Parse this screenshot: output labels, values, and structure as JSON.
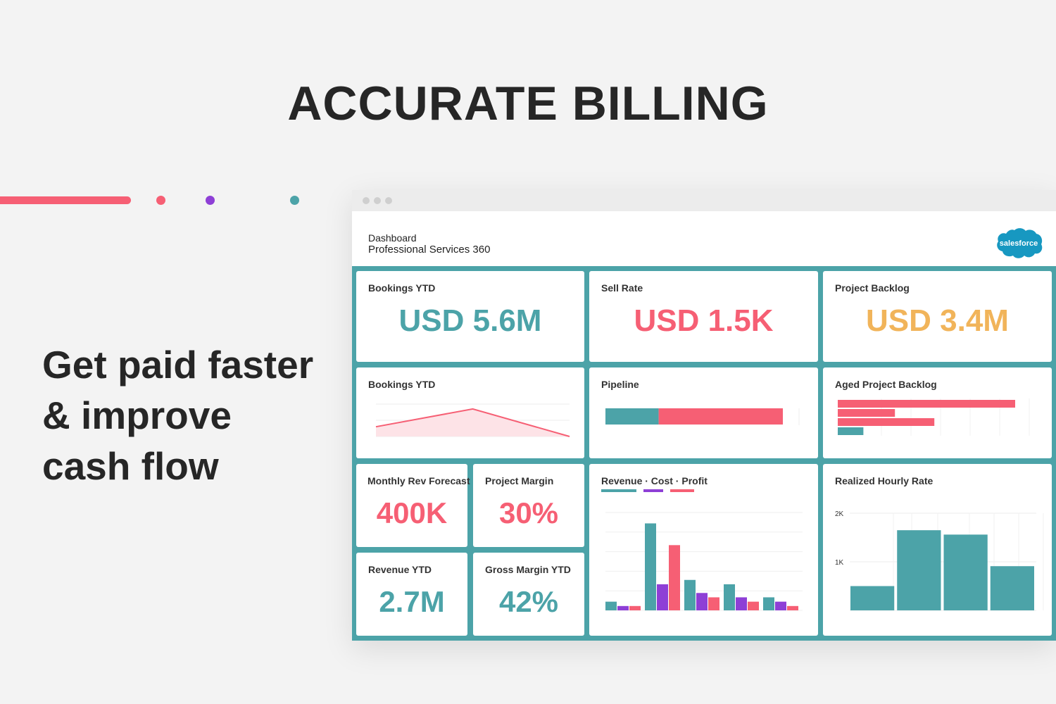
{
  "headline": "ACCURATE BILLING",
  "tagline": {
    "line1": "Get paid faster",
    "line2": "& improve",
    "line3": "cash flow"
  },
  "decoration": {
    "bar_color": "#f65f74",
    "dots": [
      "#f65f74",
      "#8e3fd6",
      "#4ca3a8"
    ]
  },
  "dashboard": {
    "label": "Dashboard",
    "title": "Professional Services 360",
    "logo_text": "salesforce",
    "logo_color": "#1798c1",
    "colors": {
      "teal": "#4ca3a8",
      "pink": "#f65f74",
      "orange": "#f1b45a",
      "purple": "#8e3fd6"
    },
    "cards": {
      "bookings_kpi": {
        "title": "Bookings YTD",
        "value": "USD 5.6M"
      },
      "sell_rate": {
        "title": "Sell Rate",
        "value": "USD 1.5K"
      },
      "project_backlog": {
        "title": "Project Backlog",
        "value": "USD 3.4M"
      },
      "bookings_chart": {
        "title": "Bookings YTD"
      },
      "pipeline": {
        "title": "Pipeline"
      },
      "aged_backlog": {
        "title": "Aged Project Backlog"
      },
      "monthly_rev": {
        "title": "Monthly Rev Forecast",
        "value": "400K"
      },
      "project_margin": {
        "title": "Project Margin",
        "value": "30%"
      },
      "revenue_ytd": {
        "title": "Revenue YTD",
        "value": "2.7M"
      },
      "gross_margin": {
        "title": "Gross Margin YTD",
        "value": "42%"
      },
      "rev_cost_profit": {
        "title": "Revenue · Cost · Profit"
      },
      "hourly_rate": {
        "title": "Realized Hourly Rate"
      }
    }
  },
  "chart_data": [
    {
      "type": "area",
      "title": "Bookings YTD",
      "x": [
        0,
        1,
        2
      ],
      "values": [
        0.3,
        0.85,
        0.0
      ],
      "ylim": [
        0,
        1
      ],
      "grid": true
    },
    {
      "type": "bar",
      "title": "Pipeline",
      "orientation": "horizontal-stacked",
      "series": [
        {
          "values": [
            0.27
          ],
          "color": "#4ca3a8"
        },
        {
          "values": [
            0.63
          ],
          "color": "#f65f74"
        }
      ]
    },
    {
      "type": "bar",
      "title": "Aged Project Backlog",
      "orientation": "horizontal",
      "values": [
        0.9,
        0.29,
        0.49,
        0.13
      ],
      "colors": [
        "#f65f74",
        "#f65f74",
        "#f65f74",
        "#4ca3a8"
      ],
      "grid": true
    },
    {
      "type": "bar",
      "title": "Revenue · Cost · Profit",
      "categories": [
        "1",
        "2",
        "3",
        "4",
        "5"
      ],
      "series": [
        {
          "values": [
            0.08,
            0.8,
            0.28,
            0.24,
            0.12
          ],
          "color": "#4ca3a8"
        },
        {
          "values": [
            0.04,
            0.24,
            0.16,
            0.12,
            0.08
          ],
          "color": "#8e3fd6"
        },
        {
          "values": [
            0.04,
            0.6,
            0.12,
            0.08,
            0.04
          ],
          "color": "#f65f74"
        }
      ],
      "ylim": [
        0,
        0.9
      ],
      "grid": true
    },
    {
      "type": "bar",
      "title": "Realized Hourly Rate",
      "categories": [
        "1",
        "2",
        "3",
        "4"
      ],
      "values": [
        500,
        1650,
        1560,
        910
      ],
      "ylim": [
        0,
        2000
      ],
      "yticks": [
        "1K",
        "2K"
      ],
      "color": "#4ca3a8",
      "grid": true
    }
  ]
}
